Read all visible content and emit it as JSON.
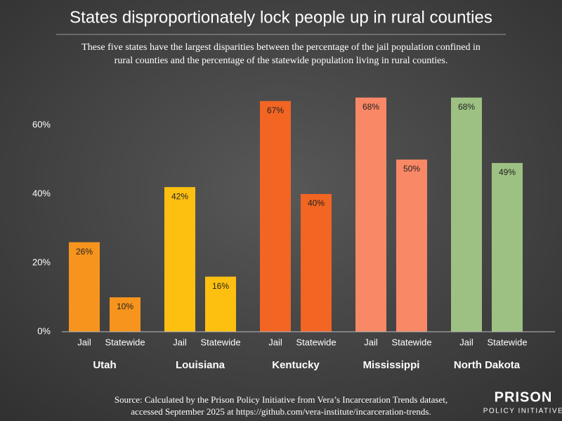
{
  "chart_data": {
    "type": "grouped_bar",
    "title": "States disproportionately lock people up in rural counties",
    "subtitle": [
      "These five states have the largest disparities between the percentage of the jail population confined in",
      "rural counties and the percentage of the statewide population living in rural counties."
    ],
    "categories": [
      "Utah",
      "Louisiana",
      "Kentucky",
      "Mississippi",
      "North Dakota"
    ],
    "colors": [
      "#f7941d",
      "#fdc010",
      "#f26522",
      "#f98866",
      "#9dc183"
    ],
    "series": [
      {
        "name": "Jail",
        "values": [
          26,
          42,
          67,
          68,
          68
        ],
        "value_labels": [
          "26%",
          "42%",
          "67%",
          "68%",
          "68%"
        ]
      },
      {
        "name": "Statewide",
        "values": [
          10,
          16,
          40,
          50,
          49
        ],
        "value_labels": [
          "10%",
          "16%",
          "40%",
          "50%",
          "49%"
        ]
      }
    ],
    "ylim": [
      0,
      70
    ],
    "yticks": [
      {
        "value": 0,
        "label": "0%"
      },
      {
        "value": 20,
        "label": "20%"
      },
      {
        "value": 40,
        "label": "40%"
      },
      {
        "value": 60,
        "label": "60%"
      }
    ],
    "source": [
      "Source: Calculated by the Prison Policy Initiative from Vera’s Incarceration Trends dataset,",
      "accessed September 2025 at https://github.com/vera-institute/incarceration-trends."
    ],
    "logo": [
      "PRISON",
      "POLICY INITIATIVE"
    ]
  }
}
